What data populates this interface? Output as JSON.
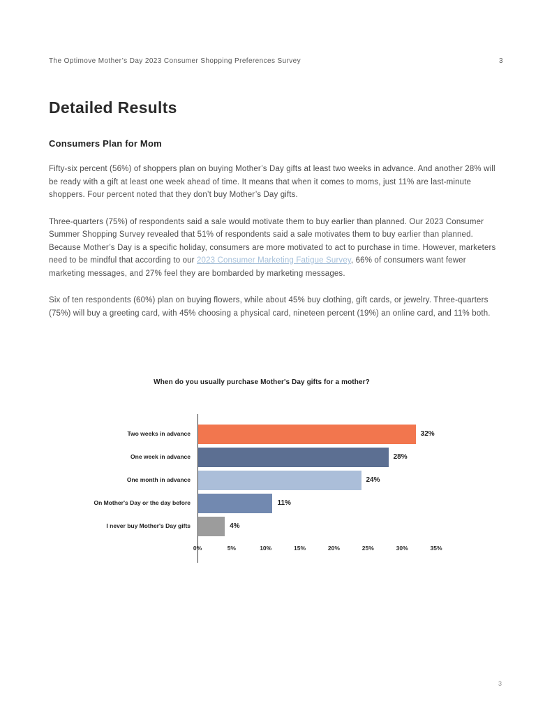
{
  "header": {
    "title": "The Optimove Mother’s Day 2023 Consumer Shopping Preferences Survey",
    "page_number": "3"
  },
  "content": {
    "main_title": "Detailed Results",
    "section_heading": "Consumers Plan for Mom",
    "p1": "Fifty-six percent (56%) of shoppers plan on buying Mother’s Day gifts at least two weeks in advance. And another 28% will be ready with a gift at least one week ahead of time. It means that when it comes to moms, just 11% are last-minute shoppers. Four percent noted that they don’t buy Mother’s Day gifts.",
    "p2_before_link": "Three-quarters (75%) of respondents said a sale would motivate them to buy earlier than planned. Our 2023 Consumer Summer Shopping Survey revealed that 51% of respondents said a sale motivates them to buy earlier than planned. Because Mother’s Day is a specific holiday, consumers are more motivated to act to purchase in time. However, marketers need to be mindful that according to our ",
    "p2_link": "2023 Consumer Marketing Fatigue Survey",
    "p2_after_link": ", 66% of consumers want fewer marketing messages, and 27% feel they are bombarded by marketing messages.",
    "p3": "Six of ten respondents (60%) plan on buying flowers,  while about 45% buy clothing, gift cards, or jewelry. Three-quarters (75%) will buy a greeting card, with 45% choosing a physical card, nineteen percent (19%) an online card, and 11% both."
  },
  "footer": {
    "page_number": "3"
  },
  "chart_data": {
    "type": "bar",
    "orientation": "horizontal",
    "title": "When do you usually purchase Mother's Day gifts for a mother?",
    "categories": [
      "Two weeks in advance",
      "One week in advance",
      "One month in advance",
      "On Mother's Day or the day before",
      "I never buy Mother's Day gifts"
    ],
    "values": [
      32,
      28,
      24,
      11,
      4
    ],
    "value_labels": [
      "32%",
      "28%",
      "24%",
      "11%",
      "4%"
    ],
    "bar_colors": [
      "#F2764E",
      "#5C6F92",
      "#ABBED9",
      "#7289B0",
      "#9C9C9C"
    ],
    "x_ticks": [
      "0%",
      "5%",
      "10%",
      "15%",
      "20%",
      "25%",
      "30%",
      "35%"
    ],
    "xlim": [
      0,
      35
    ],
    "xlabel": "",
    "ylabel": "",
    "grid": false,
    "legend": false
  }
}
